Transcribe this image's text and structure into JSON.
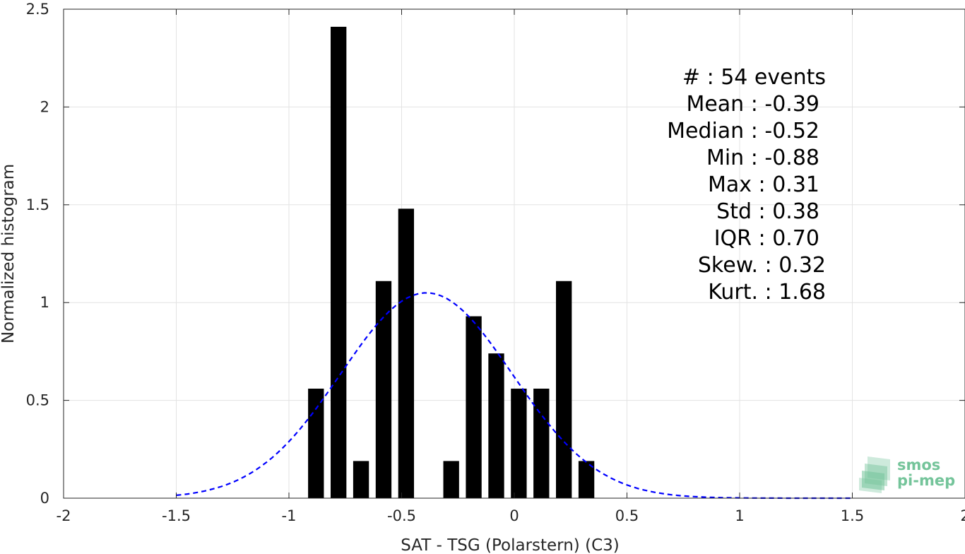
{
  "chart_data": {
    "type": "bar",
    "xlabel": "SAT - TSG (Polarstern) (C3)",
    "ylabel": "Normalized histogram",
    "xlim": [
      -2,
      2
    ],
    "ylim": [
      0,
      2.5
    ],
    "x_ticks": [
      "-2",
      "-1.5",
      "-1",
      "-0.5",
      "0",
      "0.5",
      "1",
      "1.5",
      "2"
    ],
    "y_ticks": [
      "0",
      "0.5",
      "1",
      "1.5",
      "2",
      "2.5"
    ],
    "grid": true,
    "bar_color": "#000000",
    "bar_width": 0.07,
    "bars": [
      {
        "x": -0.88,
        "y": 0.56
      },
      {
        "x": -0.78,
        "y": 2.41
      },
      {
        "x": -0.68,
        "y": 0.19
      },
      {
        "x": -0.58,
        "y": 1.11
      },
      {
        "x": -0.48,
        "y": 1.48
      },
      {
        "x": -0.28,
        "y": 0.19
      },
      {
        "x": -0.18,
        "y": 0.93
      },
      {
        "x": -0.08,
        "y": 0.74
      },
      {
        "x": 0.02,
        "y": 0.56
      },
      {
        "x": 0.12,
        "y": 0.56
      },
      {
        "x": 0.22,
        "y": 1.11
      },
      {
        "x": 0.32,
        "y": 0.19
      }
    ],
    "fit_curve": {
      "style": "dashed",
      "color": "#0000ff",
      "mean": -0.39,
      "std": 0.38,
      "x_range": [
        -1.5,
        1.5
      ]
    },
    "stats": [
      "#  : 54 events",
      "Mean : -0.39",
      "Median : -0.52",
      "Min : -0.88",
      "Max : 0.31",
      "Std : 0.38",
      "IQR : 0.70",
      "Skew. : 0.32",
      "Kurt. : 1.68"
    ]
  },
  "logo": {
    "line1": "smos",
    "line2": "pi-mep",
    "color": "#74c49a"
  }
}
